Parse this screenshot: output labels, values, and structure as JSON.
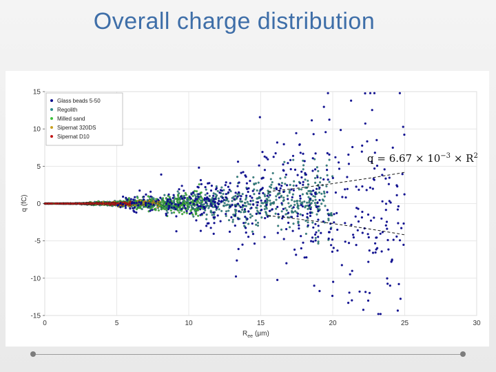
{
  "slide": {
    "title": "Overall charge distribution"
  },
  "chart_data": {
    "type": "scatter",
    "title": "",
    "xlabel": "R",
    "xlabel_sub": "ee",
    "xlabel_unit": "(μm)",
    "ylabel": "q (fC)",
    "xlim": [
      0,
      30
    ],
    "ylim": [
      -15,
      15
    ],
    "xticks": [
      0,
      5,
      10,
      15,
      20,
      25,
      30
    ],
    "yticks": [
      -15,
      -10,
      -5,
      0,
      5,
      10,
      15
    ],
    "grid": true,
    "legend_position": "top-left",
    "annotation": {
      "text_main": "q = 6.67 × 10",
      "text_exp": "−3",
      "text_tail": " × R",
      "text_pow": "2"
    },
    "fit_curves": [
      {
        "name": "upper",
        "x": [
          15.5,
          25
        ],
        "coefficient": 0.0067
      },
      {
        "name": "lower",
        "x": [
          15.5,
          25
        ],
        "coefficient": -0.0067
      }
    ],
    "series": [
      {
        "name": "Glass beads 5-50",
        "color": "#0a0a8c",
        "x_range": [
          5,
          25
        ],
        "spread_coefficient": 0.0145,
        "points_count": 520
      },
      {
        "name": "Regolith",
        "color": "#2a8a8a",
        "x_range": [
          0,
          20
        ],
        "spread_coefficient": 0.0075,
        "points_count": 1100
      },
      {
        "name": "Milled sand",
        "color": "#3cc23c",
        "x_range": [
          3,
          11
        ],
        "spread_coefficient": 0.0095,
        "points_count": 320
      },
      {
        "name": "Sipernat 320DS",
        "color": "#c8a020",
        "x_range": [
          0,
          8
        ],
        "spread_coefficient": 0.006,
        "points_count": 170
      },
      {
        "name": "Sipernat D10",
        "color": "#c21818",
        "x_range": [
          0,
          6
        ],
        "spread_coefficient": 0.004,
        "points_count": 240
      }
    ]
  }
}
